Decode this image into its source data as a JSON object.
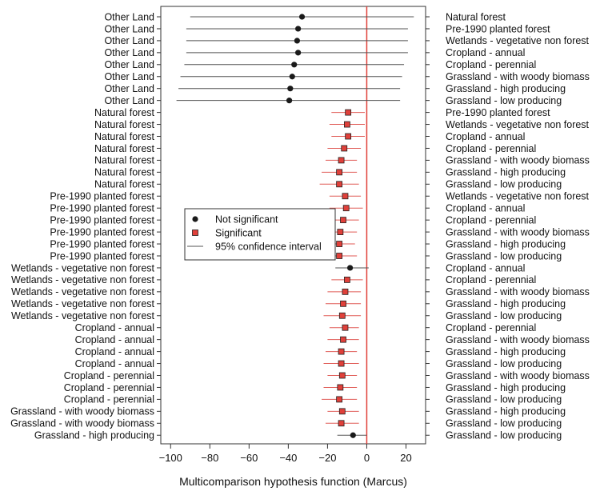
{
  "chart_data": {
    "type": "scatter",
    "xlabel": "Multicomparison hypothesis function (Marcus)",
    "xlim": [
      -105,
      30
    ],
    "x_ticks": [
      -100,
      -80,
      -60,
      -40,
      -20,
      0,
      20
    ],
    "x_tick_labels": [
      "−100",
      "−80",
      "−60",
      "−40",
      "−20",
      "0",
      "20"
    ],
    "reference_line_x": 0,
    "legend": {
      "position": "center-left",
      "entries": [
        {
          "key": "not_significant",
          "label": "Not significant"
        },
        {
          "key": "significant",
          "label": "Significant"
        },
        {
          "key": "ci",
          "label": "95% confidence interval"
        }
      ]
    },
    "colors": {
      "not_significant_marker": "#1a1a1a",
      "not_significant_line": "#555555",
      "significant_marker": "#e0403a",
      "significant_line": "#e05a55",
      "reference_line": "#e0403a"
    },
    "comparisons": [
      {
        "left": "Other Land",
        "right": "Natural forest",
        "estimate": -33,
        "lower": -90,
        "upper": 24,
        "significant": false
      },
      {
        "left": "Other Land",
        "right": "Pre-1990 planted forest",
        "estimate": -35,
        "lower": -92,
        "upper": 21,
        "significant": false
      },
      {
        "left": "Other Land",
        "right": "Wetlands - vegetative non forest",
        "estimate": -35.5,
        "lower": -92,
        "upper": 21,
        "significant": false
      },
      {
        "left": "Other Land",
        "right": "Cropland - annual",
        "estimate": -35,
        "lower": -92,
        "upper": 21,
        "significant": false
      },
      {
        "left": "Other Land",
        "right": "Cropland - perennial",
        "estimate": -37,
        "lower": -93,
        "upper": 19,
        "significant": false
      },
      {
        "left": "Other Land",
        "right": "Grassland - with woody biomass",
        "estimate": -38,
        "lower": -95,
        "upper": 18,
        "significant": false
      },
      {
        "left": "Other Land",
        "right": "Grassland - high producing",
        "estimate": -39,
        "lower": -96,
        "upper": 17,
        "significant": false
      },
      {
        "left": "Other Land",
        "right": "Grassland - low producing",
        "estimate": -39.5,
        "lower": -97,
        "upper": 17,
        "significant": false
      },
      {
        "left": "Natural forest",
        "right": "Pre-1990 planted forest",
        "estimate": -9.5,
        "lower": -18,
        "upper": -1,
        "significant": true
      },
      {
        "left": "Natural forest",
        "right": "Wetlands - vegetative non forest",
        "estimate": -10,
        "lower": -19,
        "upper": -1,
        "significant": true
      },
      {
        "left": "Natural forest",
        "right": "Cropland - annual",
        "estimate": -9.5,
        "lower": -18,
        "upper": -1,
        "significant": true
      },
      {
        "left": "Natural forest",
        "right": "Cropland - perennial",
        "estimate": -11.5,
        "lower": -20,
        "upper": -3,
        "significant": true
      },
      {
        "left": "Natural forest",
        "right": "Grassland - with woody biomass",
        "estimate": -13,
        "lower": -21,
        "upper": -5,
        "significant": true
      },
      {
        "left": "Natural forest",
        "right": "Grassland - high producing",
        "estimate": -14,
        "lower": -23,
        "upper": -5,
        "significant": true
      },
      {
        "left": "Natural forest",
        "right": "Grassland - low producing",
        "estimate": -14,
        "lower": -24,
        "upper": -4,
        "significant": true
      },
      {
        "left": "Pre-1990 planted forest",
        "right": "Wetlands - vegetative non forest",
        "estimate": -11,
        "lower": -19,
        "upper": -3,
        "significant": true
      },
      {
        "left": "Pre-1990 planted forest",
        "right": "Cropland - annual",
        "estimate": -10.5,
        "lower": -19,
        "upper": -2,
        "significant": true
      },
      {
        "left": "Pre-1990 planted forest",
        "right": "Cropland - perennial",
        "estimate": -12,
        "lower": -20,
        "upper": -4,
        "significant": true
      },
      {
        "left": "Pre-1990 planted forest",
        "right": "Grassland - with woody biomass",
        "estimate": -13.5,
        "lower": -22,
        "upper": -5,
        "significant": true
      },
      {
        "left": "Pre-1990 planted forest",
        "right": "Grassland - high producing",
        "estimate": -14,
        "lower": -22,
        "upper": -6,
        "significant": true
      },
      {
        "left": "Pre-1990 planted forest",
        "right": "Grassland - low producing",
        "estimate": -14,
        "lower": -23,
        "upper": -5,
        "significant": true
      },
      {
        "left": "Wetlands - vegetative non forest",
        "right": "Cropland - annual",
        "estimate": -8.5,
        "lower": -16,
        "upper": 1,
        "significant": false
      },
      {
        "left": "Wetlands - vegetative non forest",
        "right": "Cropland - perennial",
        "estimate": -10,
        "lower": -18,
        "upper": -2,
        "significant": true
      },
      {
        "left": "Wetlands - vegetative non forest",
        "right": "Grassland - with woody biomass",
        "estimate": -11,
        "lower": -20,
        "upper": -3,
        "significant": true
      },
      {
        "left": "Wetlands - vegetative non forest",
        "right": "Grassland - high producing",
        "estimate": -12,
        "lower": -21,
        "upper": -3,
        "significant": true
      },
      {
        "left": "Wetlands - vegetative non forest",
        "right": "Grassland - low producing",
        "estimate": -12.5,
        "lower": -22,
        "upper": -3,
        "significant": true
      },
      {
        "left": "Cropland - annual",
        "right": "Cropland - perennial",
        "estimate": -11,
        "lower": -19,
        "upper": -4,
        "significant": true
      },
      {
        "left": "Cropland - annual",
        "right": "Grassland - with woody biomass",
        "estimate": -12,
        "lower": -20,
        "upper": -4,
        "significant": true
      },
      {
        "left": "Cropland - annual",
        "right": "Grassland - high producing",
        "estimate": -13,
        "lower": -21,
        "upper": -5,
        "significant": true
      },
      {
        "left": "Cropland - annual",
        "right": "Grassland - low producing",
        "estimate": -13,
        "lower": -22,
        "upper": -4,
        "significant": true
      },
      {
        "left": "Cropland - perennial",
        "right": "Grassland - with woody biomass",
        "estimate": -12.5,
        "lower": -20,
        "upper": -5,
        "significant": true
      },
      {
        "left": "Cropland - perennial",
        "right": "Grassland - high producing",
        "estimate": -13.5,
        "lower": -22,
        "upper": -5,
        "significant": true
      },
      {
        "left": "Cropland - perennial",
        "right": "Grassland - low producing",
        "estimate": -14,
        "lower": -23,
        "upper": -5,
        "significant": true
      },
      {
        "left": "Grassland - with woody biomass",
        "right": "Grassland - high producing",
        "estimate": -12.5,
        "lower": -20,
        "upper": -4,
        "significant": true
      },
      {
        "left": "Grassland - with woody biomass",
        "right": "Grassland - low producing",
        "estimate": -13,
        "lower": -21,
        "upper": -4,
        "significant": true
      },
      {
        "left": "Grassland - high producing",
        "right": "Grassland - low producing",
        "estimate": -7,
        "lower": -15,
        "upper": 0,
        "significant": false
      }
    ]
  }
}
